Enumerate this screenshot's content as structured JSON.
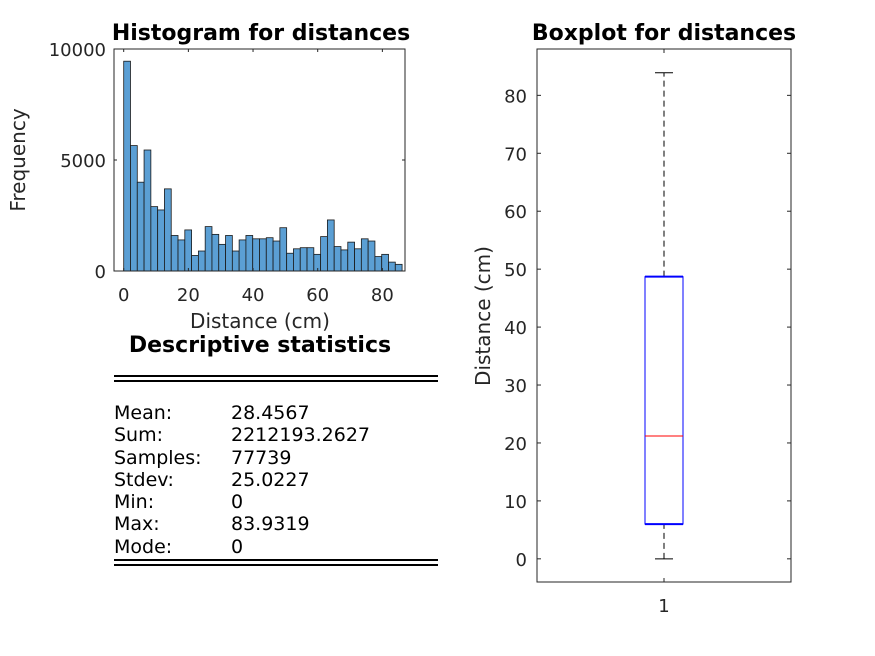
{
  "histogram": {
    "title": "Histogram for distances",
    "xlabel": "Distance (cm)",
    "ylabel": "Frequency",
    "xticks": [
      "0",
      "20",
      "40",
      "60",
      "80"
    ],
    "yticks": [
      "0",
      "5000",
      "10000"
    ]
  },
  "stats": {
    "title": "Descriptive statistics",
    "rows": [
      {
        "label": "Mean:",
        "value": "28.4567"
      },
      {
        "label": "Sum:",
        "value": "2212193.2627"
      },
      {
        "label": "Samples:",
        "value": "77739"
      },
      {
        "label": "Stdev:",
        "value": "25.0227"
      },
      {
        "label": "Min:",
        "value": "0"
      },
      {
        "label": "Max:",
        "value": "83.9319"
      },
      {
        "label": "Mode:",
        "value": "0"
      }
    ]
  },
  "boxplot": {
    "title": "Boxplot for distances",
    "ylabel": "Distance (cm)",
    "xticks": [
      "1"
    ],
    "yticks": [
      "0",
      "10",
      "20",
      "30",
      "40",
      "50",
      "60",
      "70",
      "80"
    ]
  },
  "chart_data": [
    {
      "type": "bar",
      "title": "Histogram for distances",
      "xlabel": "Distance (cm)",
      "ylabel": "Frequency",
      "xlim": [
        -3,
        87
      ],
      "ylim": [
        0,
        10000
      ],
      "bin_width": 2.1,
      "bin_start": 0,
      "values": [
        9450,
        5650,
        4000,
        5450,
        2900,
        2750,
        3700,
        1600,
        1400,
        1850,
        700,
        900,
        2000,
        1650,
        1200,
        1600,
        900,
        1400,
        1600,
        1450,
        1450,
        1500,
        1350,
        1950,
        800,
        1000,
        1050,
        1050,
        750,
        1550,
        2300,
        1100,
        950,
        1300,
        1000,
        1450,
        1350,
        650,
        750,
        400,
        300
      ],
      "bar_color": "#5b9fd4",
      "grid": false
    },
    {
      "type": "box",
      "title": "Boxplot for distances",
      "ylabel": "Distance (cm)",
      "categories": [
        "1"
      ],
      "ylim": [
        -4,
        88
      ],
      "min": 0,
      "q1": 6,
      "median": 21.2,
      "q3": 48.7,
      "max": 83.9,
      "box_color": "#0000ff",
      "median_color": "#ff0000"
    }
  ]
}
